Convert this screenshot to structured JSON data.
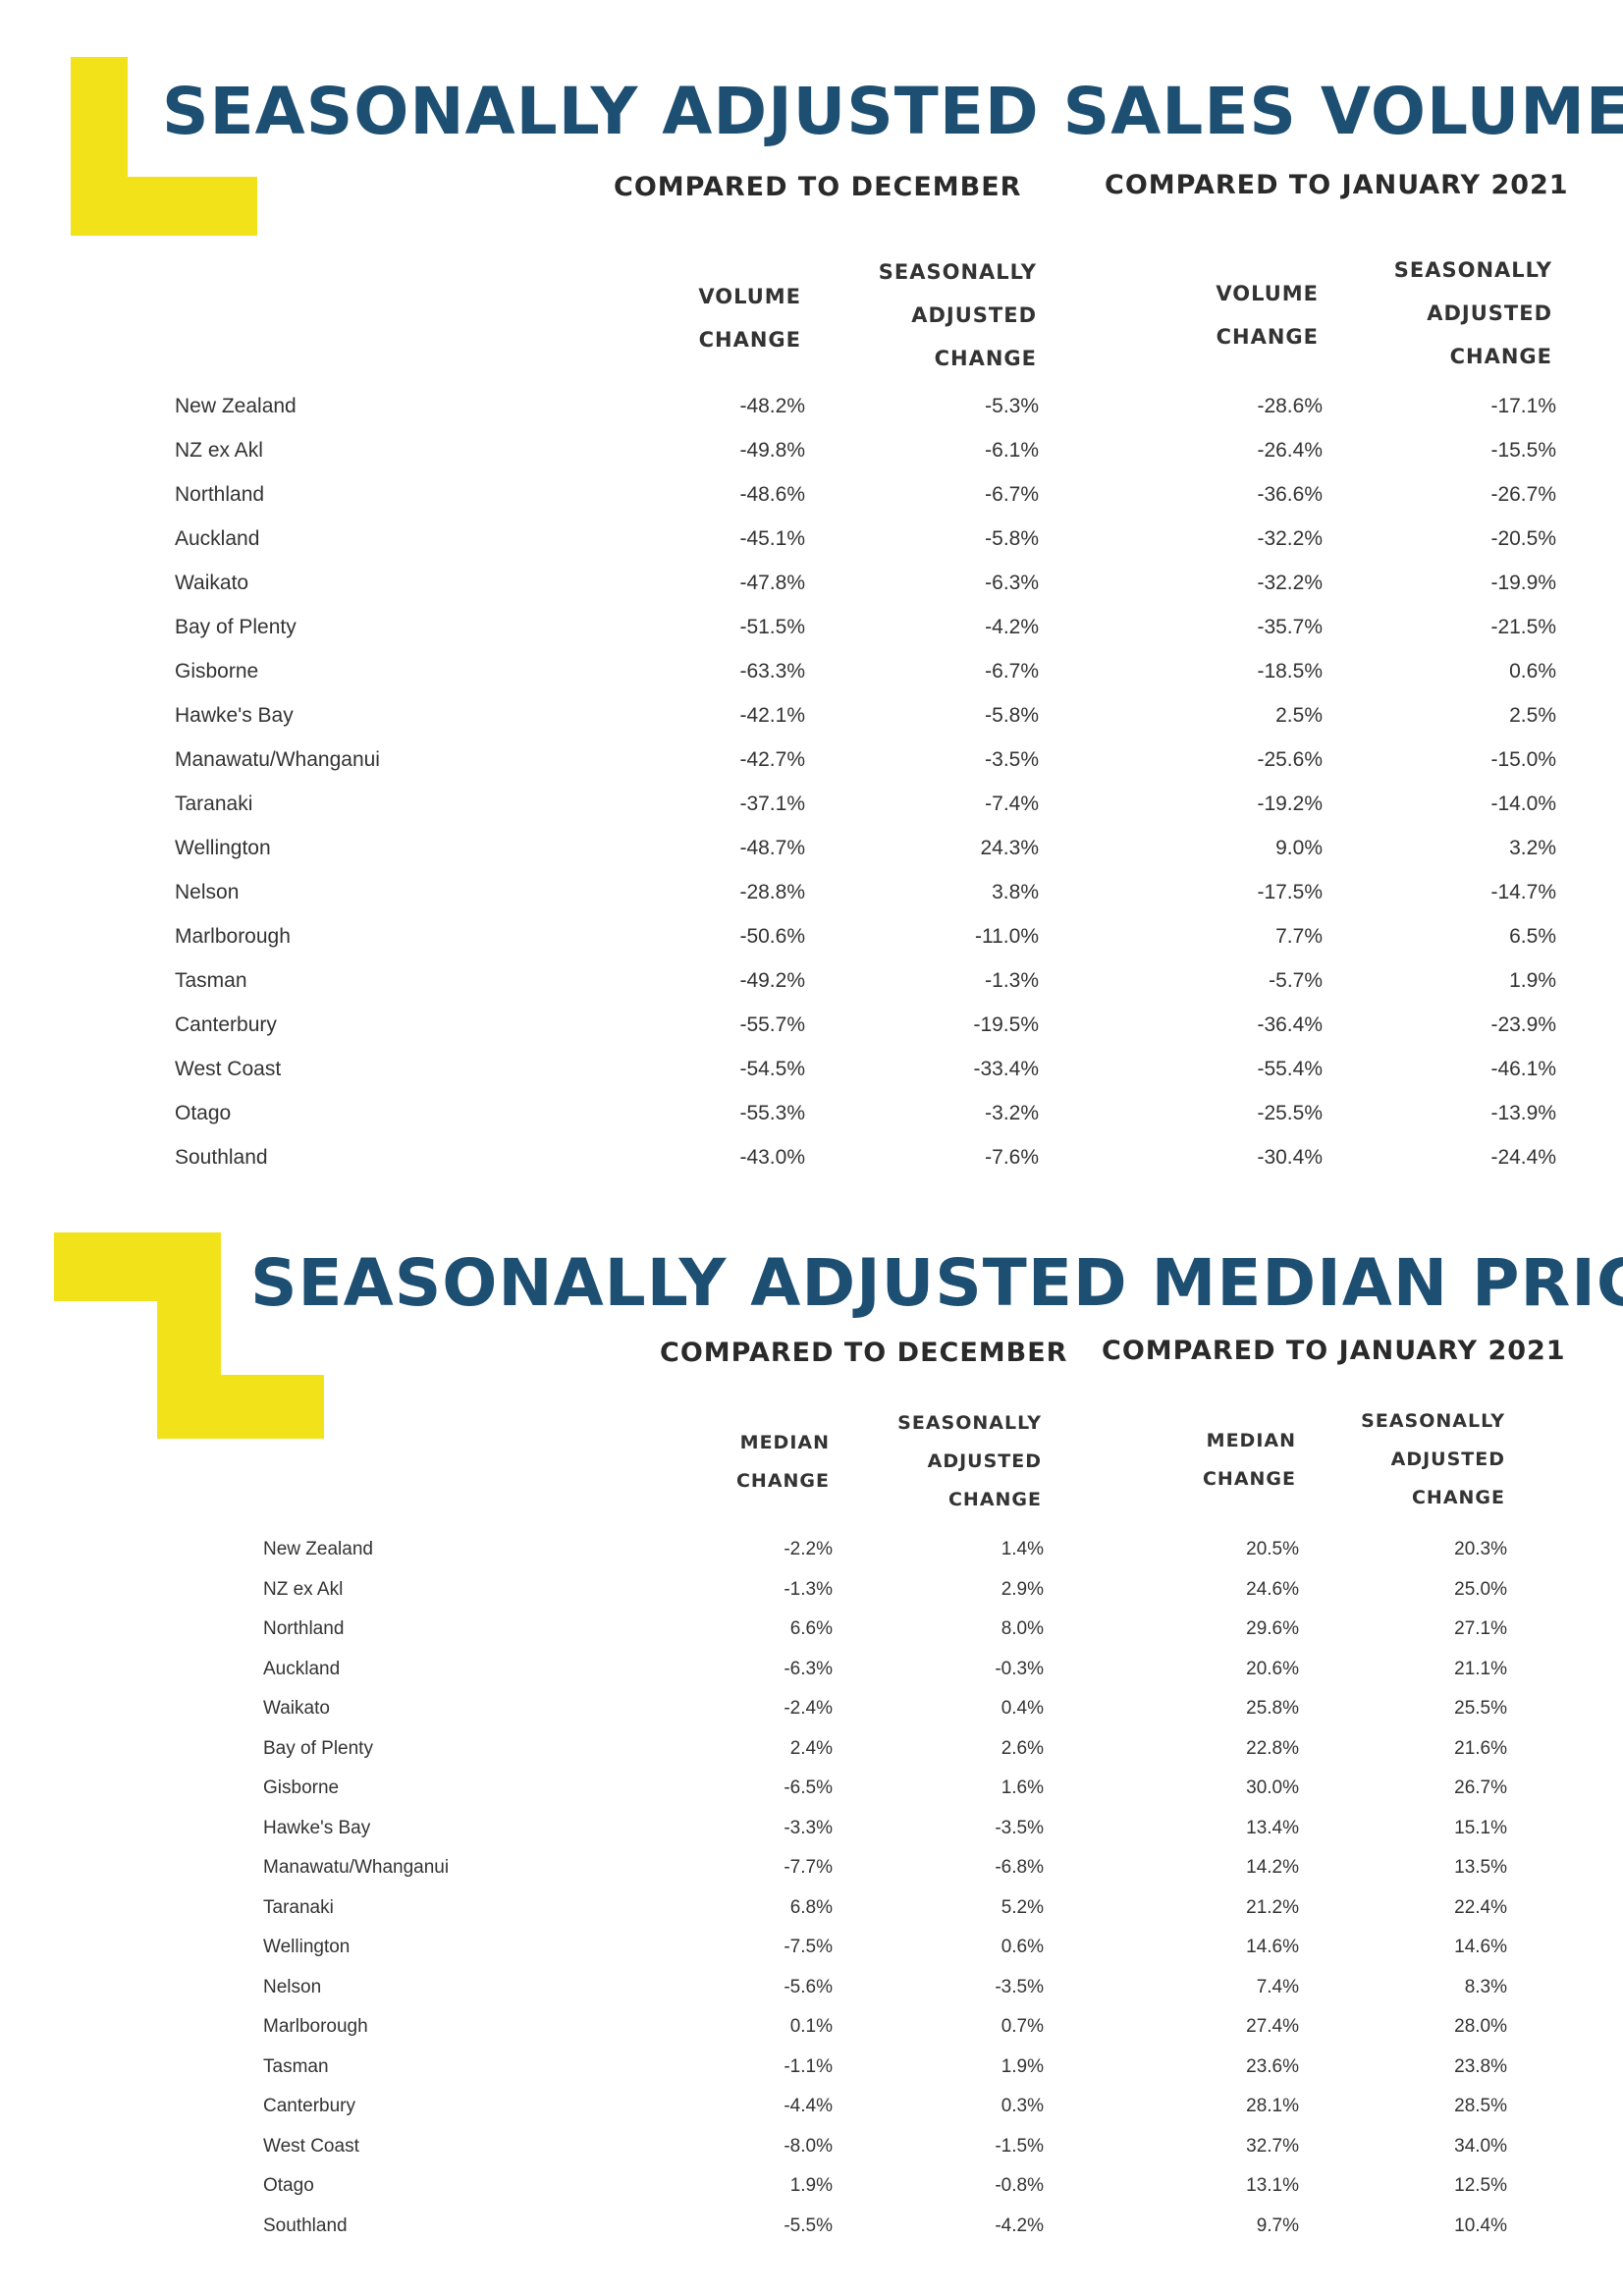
{
  "sales": {
    "title": "SEASONALLY ADJUSTED SALES VOLUMES",
    "compare_dec": "COMPARED TO DECEMBER",
    "compare_jan": "COMPARED TO JANUARY 2021",
    "col1": [
      "VOLUME",
      "CHANGE"
    ],
    "col2": [
      "SEASONALLY",
      "ADJUSTED",
      "CHANGE"
    ],
    "col3": [
      "VOLUME",
      "CHANGE"
    ],
    "col4": [
      "SEASONALLY",
      "ADJUSTED",
      "CHANGE"
    ],
    "rows": [
      {
        "region": "New Zealand",
        "v1": "-48.2%",
        "v2": "-5.3%",
        "v3": "-28.6%",
        "v4": "-17.1%"
      },
      {
        "region": "NZ ex Akl",
        "v1": "-49.8%",
        "v2": "-6.1%",
        "v3": "-26.4%",
        "v4": "-15.5%"
      },
      {
        "region": "Northland",
        "v1": "-48.6%",
        "v2": "-6.7%",
        "v3": "-36.6%",
        "v4": "-26.7%"
      },
      {
        "region": "Auckland",
        "v1": "-45.1%",
        "v2": "-5.8%",
        "v3": "-32.2%",
        "v4": "-20.5%"
      },
      {
        "region": "Waikato",
        "v1": "-47.8%",
        "v2": "-6.3%",
        "v3": "-32.2%",
        "v4": "-19.9%"
      },
      {
        "region": "Bay of Plenty",
        "v1": "-51.5%",
        "v2": "-4.2%",
        "v3": "-35.7%",
        "v4": "-21.5%"
      },
      {
        "region": "Gisborne",
        "v1": "-63.3%",
        "v2": "-6.7%",
        "v3": "-18.5%",
        "v4": "0.6%"
      },
      {
        "region": "Hawke's Bay",
        "v1": "-42.1%",
        "v2": "-5.8%",
        "v3": "2.5%",
        "v4": "2.5%"
      },
      {
        "region": "Manawatu/Whanganui",
        "v1": "-42.7%",
        "v2": "-3.5%",
        "v3": "-25.6%",
        "v4": "-15.0%"
      },
      {
        "region": "Taranaki",
        "v1": "-37.1%",
        "v2": "-7.4%",
        "v3": "-19.2%",
        "v4": "-14.0%"
      },
      {
        "region": "Wellington",
        "v1": "-48.7%",
        "v2": "24.3%",
        "v3": "9.0%",
        "v4": "3.2%"
      },
      {
        "region": "Nelson",
        "v1": "-28.8%",
        "v2": "3.8%",
        "v3": "-17.5%",
        "v4": "-14.7%"
      },
      {
        "region": "Marlborough",
        "v1": "-50.6%",
        "v2": "-11.0%",
        "v3": "7.7%",
        "v4": "6.5%"
      },
      {
        "region": "Tasman",
        "v1": "-49.2%",
        "v2": "-1.3%",
        "v3": "-5.7%",
        "v4": "1.9%"
      },
      {
        "region": "Canterbury",
        "v1": "-55.7%",
        "v2": "-19.5%",
        "v3": "-36.4%",
        "v4": "-23.9%"
      },
      {
        "region": "West Coast",
        "v1": "-54.5%",
        "v2": "-33.4%",
        "v3": "-55.4%",
        "v4": "-46.1%"
      },
      {
        "region": "Otago",
        "v1": "-55.3%",
        "v2": "-3.2%",
        "v3": "-25.5%",
        "v4": "-13.9%"
      },
      {
        "region": "Southland",
        "v1": "-43.0%",
        "v2": "-7.6%",
        "v3": "-30.4%",
        "v4": "-24.4%"
      }
    ]
  },
  "price": {
    "title": "SEASONALLY ADJUSTED MEDIAN PRICE",
    "compare_dec": "COMPARED TO DECEMBER",
    "compare_jan": "COMPARED TO JANUARY 2021",
    "col1": [
      "MEDIAN",
      "CHANGE"
    ],
    "col2": [
      "SEASONALLY",
      "ADJUSTED",
      "CHANGE"
    ],
    "col3": [
      "MEDIAN",
      "CHANGE"
    ],
    "col4": [
      "SEASONALLY",
      "ADJUSTED",
      "CHANGE"
    ],
    "rows": [
      {
        "region": "New Zealand",
        "v1": "-2.2%",
        "v2": "1.4%",
        "v3": "20.5%",
        "v4": "20.3%"
      },
      {
        "region": "NZ ex Akl",
        "v1": "-1.3%",
        "v2": "2.9%",
        "v3": "24.6%",
        "v4": "25.0%"
      },
      {
        "region": "Northland",
        "v1": "6.6%",
        "v2": "8.0%",
        "v3": "29.6%",
        "v4": "27.1%"
      },
      {
        "region": "Auckland",
        "v1": "-6.3%",
        "v2": "-0.3%",
        "v3": "20.6%",
        "v4": "21.1%"
      },
      {
        "region": "Waikato",
        "v1": "-2.4%",
        "v2": "0.4%",
        "v3": "25.8%",
        "v4": "25.5%"
      },
      {
        "region": "Bay of Plenty",
        "v1": "2.4%",
        "v2": "2.6%",
        "v3": "22.8%",
        "v4": "21.6%"
      },
      {
        "region": "Gisborne",
        "v1": "-6.5%",
        "v2": "1.6%",
        "v3": "30.0%",
        "v4": "26.7%"
      },
      {
        "region": "Hawke's Bay",
        "v1": "-3.3%",
        "v2": "-3.5%",
        "v3": "13.4%",
        "v4": "15.1%"
      },
      {
        "region": "Manawatu/Whanganui",
        "v1": "-7.7%",
        "v2": "-6.8%",
        "v3": "14.2%",
        "v4": "13.5%"
      },
      {
        "region": "Taranaki",
        "v1": "6.8%",
        "v2": "5.2%",
        "v3": "21.2%",
        "v4": "22.4%"
      },
      {
        "region": "Wellington",
        "v1": "-7.5%",
        "v2": "0.6%",
        "v3": "14.6%",
        "v4": "14.6%"
      },
      {
        "region": "Nelson",
        "v1": "-5.6%",
        "v2": "-3.5%",
        "v3": "7.4%",
        "v4": "8.3%"
      },
      {
        "region": "Marlborough",
        "v1": "0.1%",
        "v2": "0.7%",
        "v3": "27.4%",
        "v4": "28.0%"
      },
      {
        "region": "Tasman",
        "v1": "-1.1%",
        "v2": "1.9%",
        "v3": "23.6%",
        "v4": "23.8%"
      },
      {
        "region": "Canterbury",
        "v1": "-4.4%",
        "v2": "0.3%",
        "v3": "28.1%",
        "v4": "28.5%"
      },
      {
        "region": "West Coast",
        "v1": "-8.0%",
        "v2": "-1.5%",
        "v3": "32.7%",
        "v4": "34.0%"
      },
      {
        "region": "Otago",
        "v1": "1.9%",
        "v2": "-0.8%",
        "v3": "13.1%",
        "v4": "12.5%"
      },
      {
        "region": "Southland",
        "v1": "-5.5%",
        "v2": "-4.2%",
        "v3": "9.7%",
        "v4": "10.4%"
      }
    ]
  },
  "colors": {
    "accent_yellow": "#f2e21a",
    "title_blue": "#1d4f73"
  }
}
